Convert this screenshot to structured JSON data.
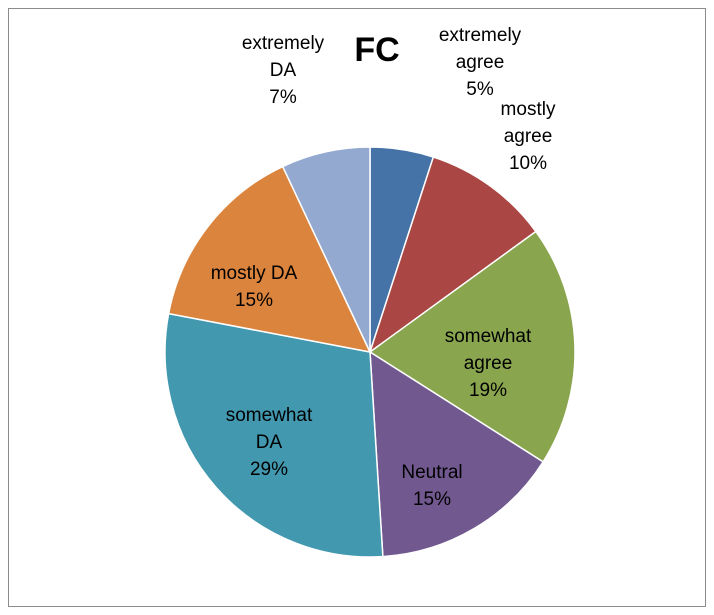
{
  "chart_data": {
    "type": "pie",
    "title": "FC",
    "categories": [
      "extremely agree",
      "mostly agree",
      "somewhat agree",
      "Neutral",
      "somewhat DA",
      "mostly DA",
      "extremely DA"
    ],
    "values": [
      5,
      10,
      19,
      15,
      29,
      15,
      7
    ],
    "labels": [
      {
        "lines": [
          "extremely",
          "agree",
          "5%"
        ]
      },
      {
        "lines": [
          "mostly",
          "agree",
          "10%"
        ]
      },
      {
        "lines": [
          "somewhat",
          "agree",
          "19%"
        ]
      },
      {
        "lines": [
          "Neutral",
          "15%"
        ]
      },
      {
        "lines": [
          "somewhat",
          "DA",
          "29%"
        ]
      },
      {
        "lines": [
          "mostly DA",
          "15%"
        ]
      },
      {
        "lines": [
          "extremely",
          "DA",
          "7%"
        ]
      }
    ],
    "colors": [
      "#4572A7",
      "#AA4643",
      "#89A54E",
      "#71588F",
      "#4198AF",
      "#DB843D",
      "#93A9CF"
    ],
    "start_angle": "12 o'clock",
    "direction": "clockwise",
    "legend": "none"
  }
}
